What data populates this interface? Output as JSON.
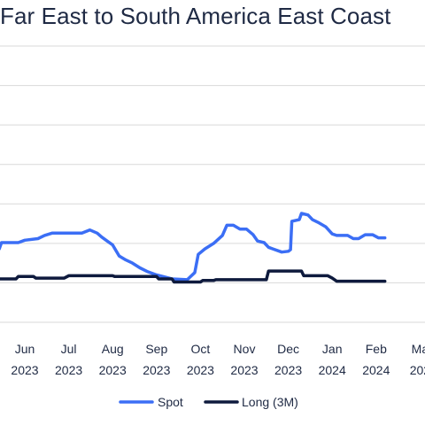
{
  "chart_data": {
    "type": "line",
    "title": "Far East to South America East Coast",
    "xlabel": "",
    "ylabel": "",
    "grid": true,
    "legend_position": "bottom",
    "ylim": [
      0,
      7
    ],
    "x_ticks": [
      {
        "month": "Jun",
        "year": "2023",
        "x": 1
      },
      {
        "month": "Jul",
        "year": "2023",
        "x": 2
      },
      {
        "month": "Aug",
        "year": "2023",
        "x": 3
      },
      {
        "month": "Sep",
        "year": "2023",
        "x": 4
      },
      {
        "month": "Oct",
        "year": "2023",
        "x": 5
      },
      {
        "month": "Nov",
        "year": "2023",
        "x": 6
      },
      {
        "month": "Dec",
        "year": "2023",
        "x": 7
      },
      {
        "month": "Jan",
        "year": "2024",
        "x": 8
      },
      {
        "month": "Feb",
        "year": "2024",
        "x": 9
      },
      {
        "month": "Ma",
        "year": "202",
        "x": 10
      }
    ],
    "series": [
      {
        "name": "Spot",
        "color": "#3b6ef5",
        "points": [
          [
            0.0,
            1.75
          ],
          [
            0.25,
            1.75
          ],
          [
            0.3,
            1.86
          ],
          [
            0.42,
            1.86
          ],
          [
            0.47,
            2.02
          ],
          [
            0.85,
            2.02
          ],
          [
            1.0,
            2.08
          ],
          [
            1.3,
            2.12
          ],
          [
            1.45,
            2.2
          ],
          [
            1.62,
            2.26
          ],
          [
            2.0,
            2.26
          ],
          [
            2.3,
            2.26
          ],
          [
            2.48,
            2.34
          ],
          [
            2.65,
            2.26
          ],
          [
            2.75,
            2.16
          ],
          [
            2.9,
            2.04
          ],
          [
            3.0,
            1.96
          ],
          [
            3.15,
            1.68
          ],
          [
            3.3,
            1.58
          ],
          [
            3.45,
            1.5
          ],
          [
            3.62,
            1.38
          ],
          [
            3.8,
            1.28
          ],
          [
            4.0,
            1.2
          ],
          [
            4.15,
            1.16
          ],
          [
            4.35,
            1.1
          ],
          [
            4.7,
            1.08
          ],
          [
            4.87,
            1.26
          ],
          [
            4.95,
            1.72
          ],
          [
            5.1,
            1.86
          ],
          [
            5.3,
            2.0
          ],
          [
            5.5,
            2.2
          ],
          [
            5.6,
            2.46
          ],
          [
            5.75,
            2.46
          ],
          [
            5.9,
            2.36
          ],
          [
            6.05,
            2.36
          ],
          [
            6.2,
            2.22
          ],
          [
            6.3,
            2.06
          ],
          [
            6.45,
            2.02
          ],
          [
            6.55,
            1.9
          ],
          [
            6.65,
            1.86
          ],
          [
            6.85,
            1.78
          ],
          [
            7.0,
            1.8
          ],
          [
            7.05,
            1.84
          ],
          [
            7.08,
            2.56
          ],
          [
            7.25,
            2.6
          ],
          [
            7.3,
            2.76
          ],
          [
            7.45,
            2.72
          ],
          [
            7.55,
            2.6
          ],
          [
            7.7,
            2.52
          ],
          [
            7.85,
            2.42
          ],
          [
            8.0,
            2.24
          ],
          [
            8.1,
            2.2
          ],
          [
            8.35,
            2.2
          ],
          [
            8.48,
            2.12
          ],
          [
            8.6,
            2.12
          ],
          [
            8.75,
            2.22
          ],
          [
            8.92,
            2.22
          ],
          [
            9.05,
            2.14
          ],
          [
            9.2,
            2.14
          ]
        ]
      },
      {
        "name": "Long (3M)",
        "color": "#0e1a3d",
        "points": [
          [
            0.0,
            1.06
          ],
          [
            0.3,
            1.06
          ],
          [
            0.42,
            1.1
          ],
          [
            0.8,
            1.1
          ],
          [
            0.85,
            1.16
          ],
          [
            1.2,
            1.16
          ],
          [
            1.25,
            1.12
          ],
          [
            1.9,
            1.12
          ],
          [
            2.0,
            1.18
          ],
          [
            3.0,
            1.18
          ],
          [
            3.05,
            1.16
          ],
          [
            4.0,
            1.16
          ],
          [
            4.05,
            1.1
          ],
          [
            4.35,
            1.1
          ],
          [
            4.4,
            1.02
          ],
          [
            5.0,
            1.02
          ],
          [
            5.05,
            1.06
          ],
          [
            5.3,
            1.06
          ],
          [
            5.35,
            1.08
          ],
          [
            6.5,
            1.08
          ],
          [
            6.55,
            1.3
          ],
          [
            7.3,
            1.3
          ],
          [
            7.35,
            1.18
          ],
          [
            7.9,
            1.18
          ],
          [
            8.0,
            1.12
          ],
          [
            8.1,
            1.04
          ],
          [
            9.2,
            1.04
          ]
        ]
      }
    ]
  }
}
